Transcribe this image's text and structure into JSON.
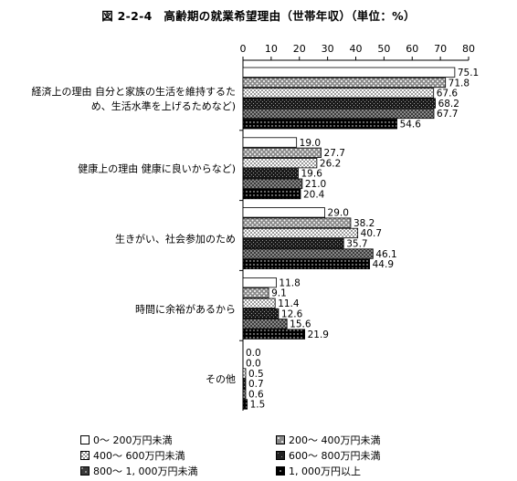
{
  "chart_data": {
    "type": "bar",
    "orientation": "horizontal",
    "title": "図 2-2-4　高齢期の就業希望理由（世帯年収）（単位：%）",
    "xlim": [
      0,
      80
    ],
    "xticks": [
      "0",
      "10",
      "20",
      "30",
      "40",
      "50",
      "60",
      "70",
      "80"
    ],
    "categories": [
      [
        "経済上の理由 自分と家族の生活を維持するた",
        "め、生活水準を上げるためなど)"
      ],
      [
        "健康上の理由 健康に良いからなど)"
      ],
      [
        "生きがい、社会参加のため"
      ],
      [
        "時間に余裕があるから"
      ],
      [
        "その他"
      ]
    ],
    "series": [
      {
        "name": "0～ 200万円未満",
        "values": [
          75.1,
          19.0,
          29.0,
          11.8,
          0.0
        ],
        "labels": [
          "75.1",
          "19.0",
          "29.0",
          "11.8",
          "0.0"
        ]
      },
      {
        "name": "200～ 400万円未満",
        "values": [
          71.8,
          27.7,
          38.2,
          9.1,
          0.0
        ],
        "labels": [
          "71.8",
          "27.7",
          "38.2",
          "9.1",
          "0.0"
        ]
      },
      {
        "name": "400～ 600万円未満",
        "values": [
          67.6,
          26.2,
          40.7,
          11.4,
          0.5
        ],
        "labels": [
          "67.6",
          "26.2",
          "40.7",
          "11.4",
          "0.5"
        ]
      },
      {
        "name": "600～ 800万円未満",
        "values": [
          68.2,
          19.6,
          35.7,
          12.6,
          0.7
        ],
        "labels": [
          "68.2",
          "19.6",
          "35.7",
          "12.6",
          "0.7"
        ]
      },
      {
        "name": "800～ 1, 000万円未満",
        "values": [
          67.7,
          21.0,
          46.1,
          15.6,
          0.6
        ],
        "labels": [
          "67.7",
          "21.0",
          "46.1",
          "15.6",
          "0.6"
        ]
      },
      {
        "name": "1, 000万円以上",
        "values": [
          54.6,
          20.4,
          44.9,
          21.9,
          1.5
        ],
        "labels": [
          "54.6",
          "20.4",
          "44.9",
          "21.9",
          "1.5"
        ]
      }
    ],
    "legend_position": "bottom",
    "grid": false
  }
}
